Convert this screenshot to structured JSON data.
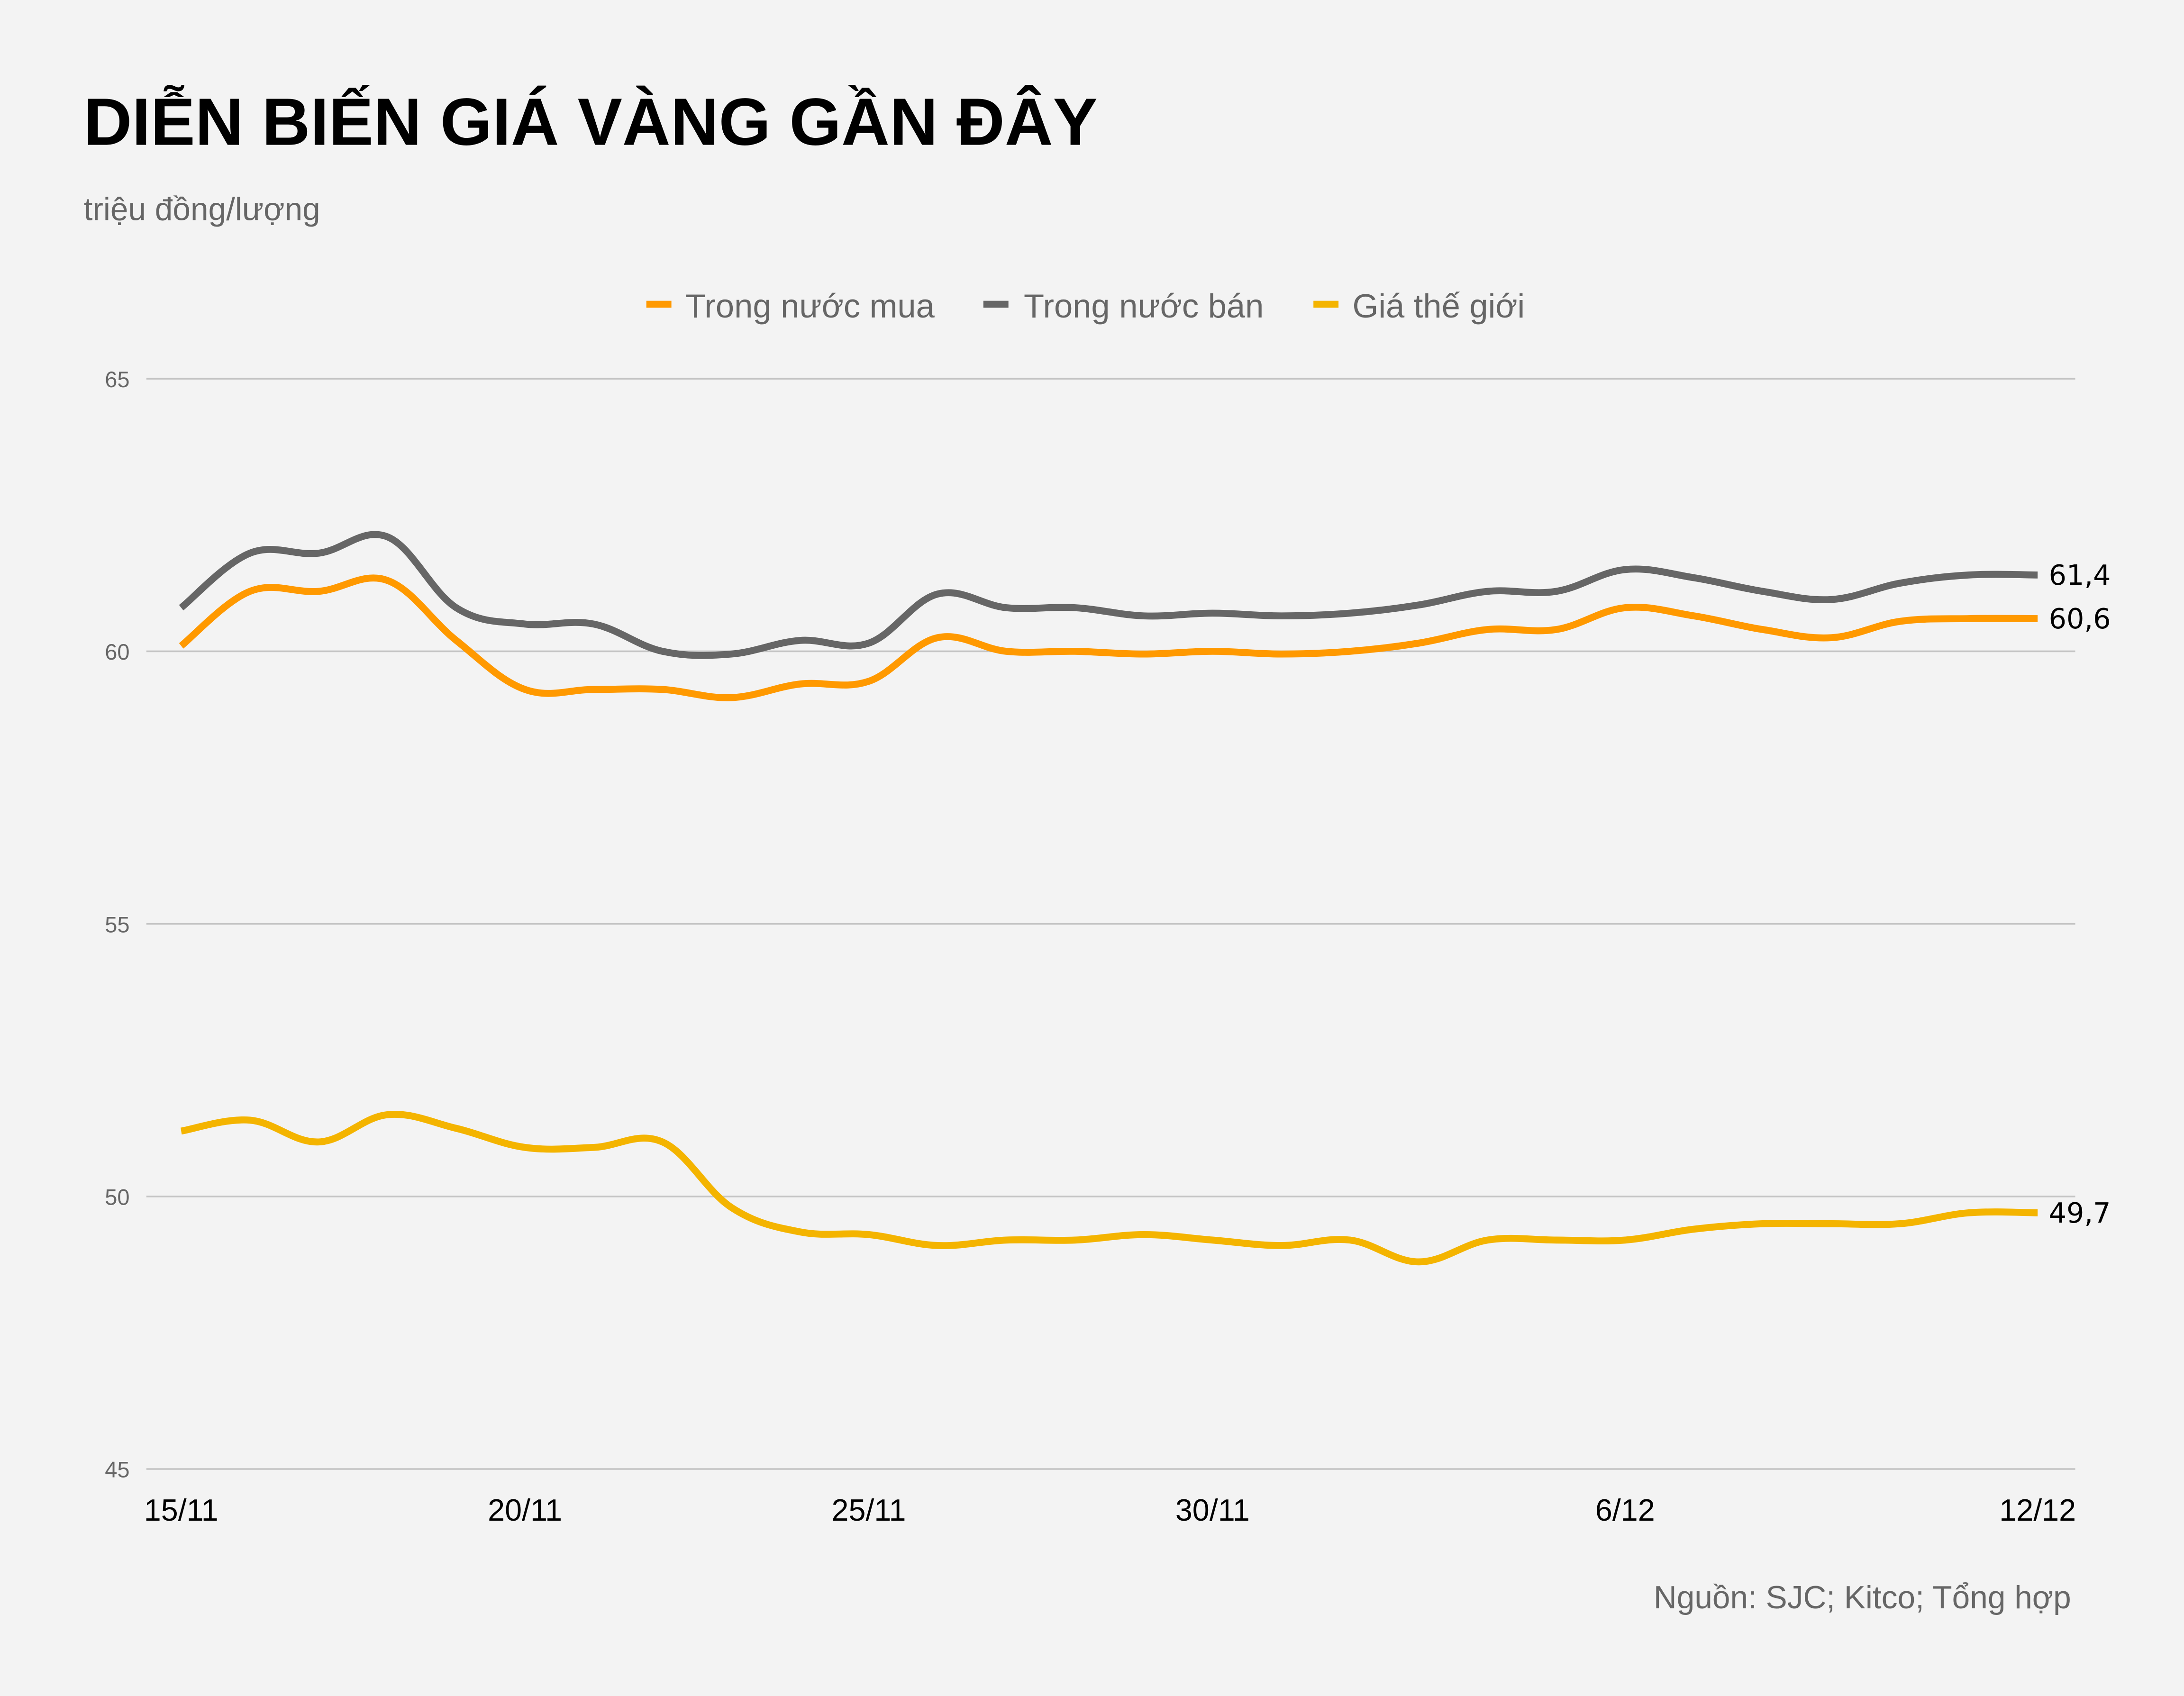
{
  "chart_data": {
    "type": "line",
    "title": "DIỄN BIẾN GIÁ VÀNG GẦN ĐÂY",
    "subtitle": "triệu đồng/lượng",
    "source": "Nguồn: SJC; Kitco; Tổng hợp",
    "xlabel": "",
    "ylabel": "",
    "ylim": [
      45,
      65
    ],
    "yticks": [
      "45",
      "50",
      "55",
      "60",
      "65"
    ],
    "ytick_values": [
      45,
      50,
      55,
      60,
      65
    ],
    "xtick_labels": [
      "15/11",
      "20/11",
      "25/11",
      "30/11",
      "6/12",
      "12/12"
    ],
    "xtick_index": [
      0,
      5,
      10,
      15,
      21,
      27
    ],
    "x": [
      "15/11",
      "16/11",
      "17/11",
      "18/11",
      "19/11",
      "20/11",
      "21/11",
      "22/11",
      "23/11",
      "24/11",
      "25/11",
      "26/11",
      "27/11",
      "28/11",
      "29/11",
      "30/11",
      "1/12",
      "2/12",
      "3/12",
      "4/12",
      "5/12",
      "6/12",
      "7/12",
      "8/12",
      "9/12",
      "10/12",
      "11/12",
      "12/12"
    ],
    "grid": true,
    "legend_position": "top-center",
    "series": [
      {
        "name": "Trong nước mua",
        "color": "#FF9900",
        "values": [
          60.1,
          61.1,
          61.1,
          61.3,
          60.2,
          59.3,
          59.3,
          59.3,
          59.15,
          59.4,
          59.45,
          60.25,
          60.0,
          60.0,
          59.95,
          60.0,
          59.95,
          60.0,
          60.15,
          60.4,
          60.4,
          60.8,
          60.65,
          60.4,
          60.25,
          60.55,
          60.6,
          60.6
        ],
        "end_label": "60,6"
      },
      {
        "name": "Trong nước bán",
        "color": "#666666",
        "values": [
          60.8,
          61.8,
          61.8,
          62.1,
          60.8,
          60.5,
          60.5,
          60.0,
          59.95,
          60.2,
          60.15,
          61.05,
          60.8,
          60.8,
          60.65,
          60.7,
          60.65,
          60.7,
          60.85,
          61.1,
          61.1,
          61.5,
          61.35,
          61.1,
          60.95,
          61.25,
          61.4,
          61.4
        ],
        "end_label": "61,4"
      },
      {
        "name": "Giá thế giới",
        "color": "#F4B400",
        "values": [
          51.2,
          51.4,
          51.0,
          51.5,
          51.25,
          50.9,
          50.9,
          51.0,
          49.8,
          49.35,
          49.3,
          49.1,
          49.2,
          49.2,
          49.3,
          49.2,
          49.1,
          49.2,
          48.8,
          49.2,
          49.2,
          49.2,
          49.4,
          49.5,
          49.5,
          49.5,
          49.7,
          49.7
        ],
        "end_label": "49,7"
      }
    ]
  }
}
